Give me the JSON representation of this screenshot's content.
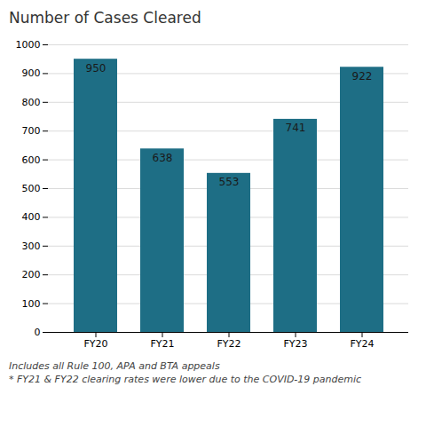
{
  "chart_data": {
    "type": "bar",
    "title": "Number of Cases Cleared",
    "categories": [
      "FY20",
      "FY21",
      "FY22",
      "FY23",
      "FY24"
    ],
    "values": [
      950,
      638,
      553,
      741,
      922
    ],
    "color": "#1e6e85",
    "ylim": [
      0,
      1000
    ],
    "yticks": [
      0,
      100,
      200,
      300,
      400,
      500,
      600,
      700,
      800,
      900,
      1000
    ],
    "grid": true,
    "data_labels": true,
    "annotations": [
      "Includes all Rule 100, APA and BTA appeals",
      "* FY21 & FY22 clearing rates were lower due to the COVID-19 pandemic"
    ]
  }
}
